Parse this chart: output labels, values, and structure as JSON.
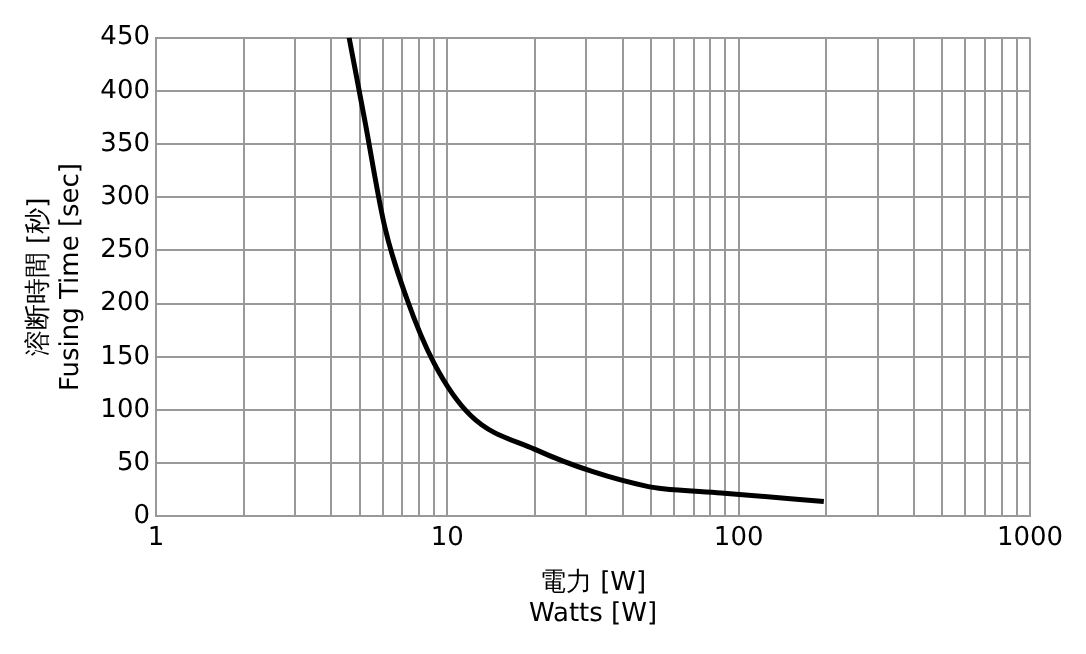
{
  "chart_data": {
    "type": "line",
    "xlabel": "電力 [W]\nWatts [W]",
    "ylabel": "溶断時間 [秒]\nFusing Time [sec]",
    "log": "x",
    "grid": true,
    "marker": "none",
    "line_style": "solid",
    "x": [
      4.6,
      5.2,
      6.1,
      7.25,
      9,
      12,
      20,
      31.6,
      49,
      55,
      87,
      196
    ],
    "series": [
      {
        "color": "#000000",
        "values": [
          450,
          373,
          272,
          205,
          144,
          95,
          63,
          42,
          28,
          26,
          22,
          14
        ]
      }
    ],
    "xlim": [
      1,
      1000
    ],
    "xticks": [
      1,
      {
        "value": 2,
        "label": null
      },
      {
        "value": 3,
        "label": null
      },
      {
        "value": 4,
        "label": null
      },
      {
        "value": 5,
        "label": null
      },
      {
        "value": 6,
        "label": null
      },
      {
        "value": 7,
        "label": null
      },
      {
        "value": 8,
        "label": null
      },
      {
        "value": 9,
        "label": null
      },
      10,
      {
        "value": 20,
        "label": null
      },
      {
        "value": 30,
        "label": null
      },
      {
        "value": 40,
        "label": null
      },
      {
        "value": 50,
        "label": null
      },
      {
        "value": 60,
        "label": null
      },
      {
        "value": 70,
        "label": null
      },
      {
        "value": 80,
        "label": null
      },
      {
        "value": 90,
        "label": null
      },
      100,
      {
        "value": 200,
        "label": null
      },
      {
        "value": 300,
        "label": null
      },
      {
        "value": 400,
        "label": null
      },
      {
        "value": 500,
        "label": null
      },
      {
        "value": 600,
        "label": null
      },
      {
        "value": 700,
        "label": null
      },
      {
        "value": 800,
        "label": null
      },
      {
        "value": 900,
        "label": null
      },
      1000
    ],
    "ylim": [
      0,
      450
    ],
    "yticks": [
      0,
      50,
      100,
      150,
      200,
      250,
      300,
      350,
      400,
      450
    ]
  }
}
